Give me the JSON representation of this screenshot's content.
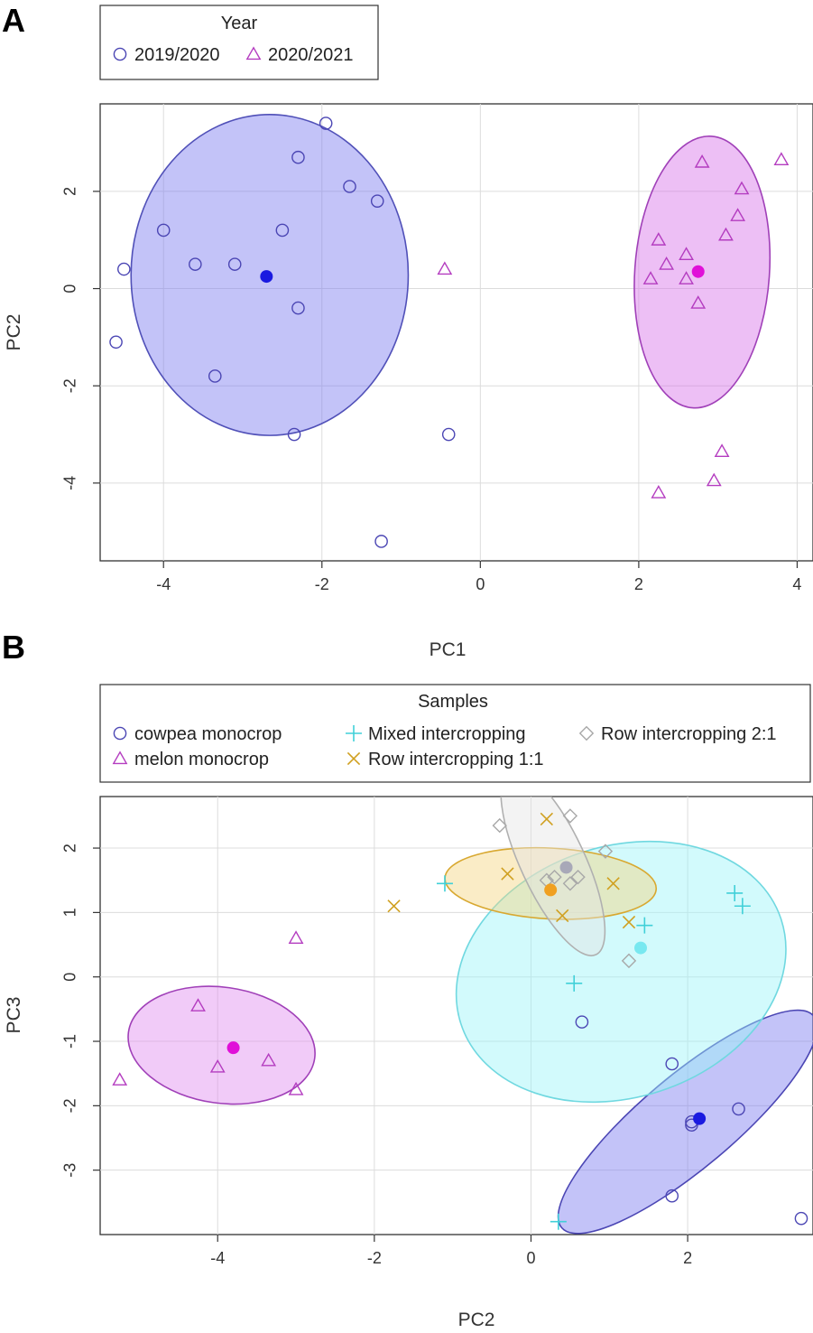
{
  "chart_data": [
    {
      "type": "scatter",
      "panel_label": "A",
      "xlabel": "PC1",
      "ylabel": "PC2",
      "xlim": [
        -4.8,
        4.2
      ],
      "ylim": [
        -5.6,
        3.8
      ],
      "xticks": [
        -4,
        -2,
        0,
        2,
        4
      ],
      "yticks": [
        2,
        0,
        -2,
        -4
      ],
      "legend": {
        "title": "Year",
        "placement": "top-left outside",
        "entries": [
          {
            "label": "2019/2020",
            "shape": "circle",
            "color": "#4b46b4"
          },
          {
            "label": "2020/2021",
            "shape": "triangle",
            "color": "#b43cc0"
          }
        ]
      },
      "series": [
        {
          "name": "2019/2020",
          "shape": "circle",
          "color": "#4b46b4",
          "points": [
            [
              -4.5,
              0.4
            ],
            [
              -4.6,
              -1.1
            ],
            [
              -4.0,
              1.2
            ],
            [
              -3.6,
              0.5
            ],
            [
              -3.1,
              0.5
            ],
            [
              -3.35,
              -1.8
            ],
            [
              -2.5,
              1.2
            ],
            [
              -2.3,
              2.7
            ],
            [
              -2.3,
              -0.4
            ],
            [
              -2.35,
              -3.0
            ],
            [
              -1.95,
              3.4
            ],
            [
              -1.65,
              2.1
            ],
            [
              -1.3,
              1.8
            ],
            [
              -1.25,
              -5.2
            ],
            [
              -0.4,
              -3.0
            ]
          ],
          "centroid": [
            -2.7,
            0.25
          ],
          "centroid_color": "#1a1ae0",
          "ellipse": {
            "cx": -2.66,
            "cy": 0.28,
            "rx": 1.75,
            "ry": 3.3,
            "angle_deg": 0,
            "fill": "#7b7bf0",
            "stroke": "#5050b8"
          }
        },
        {
          "name": "2020/2021",
          "shape": "triangle",
          "color": "#b43cc0",
          "points": [
            [
              -0.45,
              0.4
            ],
            [
              2.15,
              0.2
            ],
            [
              2.25,
              1.0
            ],
            [
              2.35,
              0.5
            ],
            [
              2.6,
              0.7
            ],
            [
              2.6,
              0.2
            ],
            [
              2.75,
              -0.3
            ],
            [
              2.8,
              2.6
            ],
            [
              3.1,
              1.1
            ],
            [
              3.25,
              1.5
            ],
            [
              3.3,
              2.05
            ],
            [
              3.8,
              2.65
            ],
            [
              3.05,
              -3.35
            ],
            [
              2.95,
              -3.95
            ],
            [
              2.25,
              -4.2
            ]
          ],
          "centroid": [
            2.75,
            0.35
          ],
          "centroid_color": "#e010d8",
          "ellipse": {
            "cx": 2.8,
            "cy": 0.34,
            "rx": 0.85,
            "ry": 2.8,
            "angle_deg": -4,
            "fill": "#d870e8",
            "stroke": "#a040b8"
          }
        }
      ]
    },
    {
      "type": "scatter",
      "panel_label": "B",
      "xlabel": "PC2",
      "ylabel": "PC3",
      "xlim": [
        -5.5,
        3.6
      ],
      "ylim": [
        -4.0,
        2.8
      ],
      "xticks": [
        -4,
        -2,
        0,
        2
      ],
      "yticks": [
        2,
        1,
        0,
        -1,
        -2,
        -3
      ],
      "legend": {
        "title": "Samples",
        "placement": "top outside",
        "entries": [
          {
            "label": "cowpea monocrop",
            "shape": "circle",
            "color": "#4b46b4"
          },
          {
            "label": "melon monocrop",
            "shape": "triangle",
            "color": "#b43cc0"
          },
          {
            "label": "Mixed intercropping",
            "shape": "plus",
            "color": "#40d0d8"
          },
          {
            "label": "Row intercropping 1:1",
            "shape": "cross",
            "color": "#d0a020"
          },
          {
            "label": "Row intercropping 2:1",
            "shape": "diamond",
            "color": "#a8a8a8"
          }
        ]
      },
      "series": [
        {
          "name": "cowpea monocrop",
          "shape": "circle",
          "color": "#4b46b4",
          "points": [
            [
              0.65,
              -0.7
            ],
            [
              1.8,
              -1.35
            ],
            [
              2.05,
              -2.25
            ],
            [
              2.65,
              -2.05
            ],
            [
              1.8,
              -3.4
            ],
            [
              3.45,
              -3.75
            ],
            [
              2.05,
              -2.3
            ]
          ],
          "centroid": [
            2.15,
            -2.2
          ],
          "centroid_color": "#1a1ae0",
          "ellipse": {
            "cx": 2.0,
            "cy": -2.25,
            "rx": 2.1,
            "ry": 0.72,
            "angle_deg": 40,
            "fill": "#7b7bf0",
            "stroke": "#4b46b4"
          }
        },
        {
          "name": "melon monocrop",
          "shape": "triangle",
          "color": "#b43cc0",
          "points": [
            [
              -5.25,
              -1.6
            ],
            [
              -4.25,
              -0.45
            ],
            [
              -4.0,
              -1.4
            ],
            [
              -3.35,
              -1.3
            ],
            [
              -3.0,
              -1.75
            ],
            [
              -3.0,
              0.6
            ]
          ],
          "centroid": [
            -3.8,
            -1.1
          ],
          "centroid_color": "#e010d8",
          "ellipse": {
            "cx": -3.95,
            "cy": -1.06,
            "rx": 1.2,
            "ry": 0.9,
            "angle_deg": -8,
            "fill": "#e08cf0",
            "stroke": "#a040b8"
          }
        },
        {
          "name": "Mixed intercropping",
          "shape": "plus",
          "color": "#40d0d8",
          "points": [
            [
              -1.1,
              1.45
            ],
            [
              0.55,
              -0.1
            ],
            [
              1.45,
              0.8
            ],
            [
              2.6,
              1.3
            ],
            [
              2.7,
              1.1
            ],
            [
              0.35,
              -3.8
            ]
          ],
          "centroid": [
            1.4,
            0.45
          ],
          "centroid_color": "#78e8f0",
          "ellipse": {
            "cx": 1.15,
            "cy": 0.08,
            "rx": 2.15,
            "ry": 1.95,
            "angle_deg": 18,
            "fill": "#9cf4f8",
            "stroke": "#70d8e0"
          }
        },
        {
          "name": "Row intercropping 1:1",
          "shape": "cross",
          "color": "#d0a020",
          "points": [
            [
              -1.75,
              1.1
            ],
            [
              -0.3,
              1.6
            ],
            [
              0.2,
              2.45
            ],
            [
              0.4,
              0.95
            ],
            [
              1.05,
              1.45
            ],
            [
              1.25,
              0.85
            ]
          ],
          "centroid": [
            0.25,
            1.35
          ],
          "centroid_color": "#f0a020",
          "ellipse": {
            "cx": 0.25,
            "cy": 1.45,
            "rx": 1.35,
            "ry": 0.55,
            "angle_deg": -3,
            "fill": "#f4d480",
            "stroke": "#d8a830"
          }
        },
        {
          "name": "Row intercropping 2:1",
          "shape": "diamond",
          "color": "#a8a8a8",
          "points": [
            [
              -0.4,
              2.35
            ],
            [
              0.2,
              1.5
            ],
            [
              0.5,
              2.5
            ],
            [
              0.5,
              1.45
            ],
            [
              0.95,
              1.95
            ],
            [
              1.25,
              0.25
            ],
            [
              0.6,
              1.55
            ],
            [
              0.3,
              1.55
            ]
          ],
          "centroid": [
            0.45,
            1.7
          ],
          "centroid_color": "#a8a8b8",
          "ellipse": {
            "cx": 0.28,
            "cy": 1.78,
            "rx": 1.3,
            "ry": 0.5,
            "angle_deg": -65,
            "fill": "#e4e4e4",
            "stroke": "#b0b0b0"
          }
        }
      ]
    }
  ]
}
